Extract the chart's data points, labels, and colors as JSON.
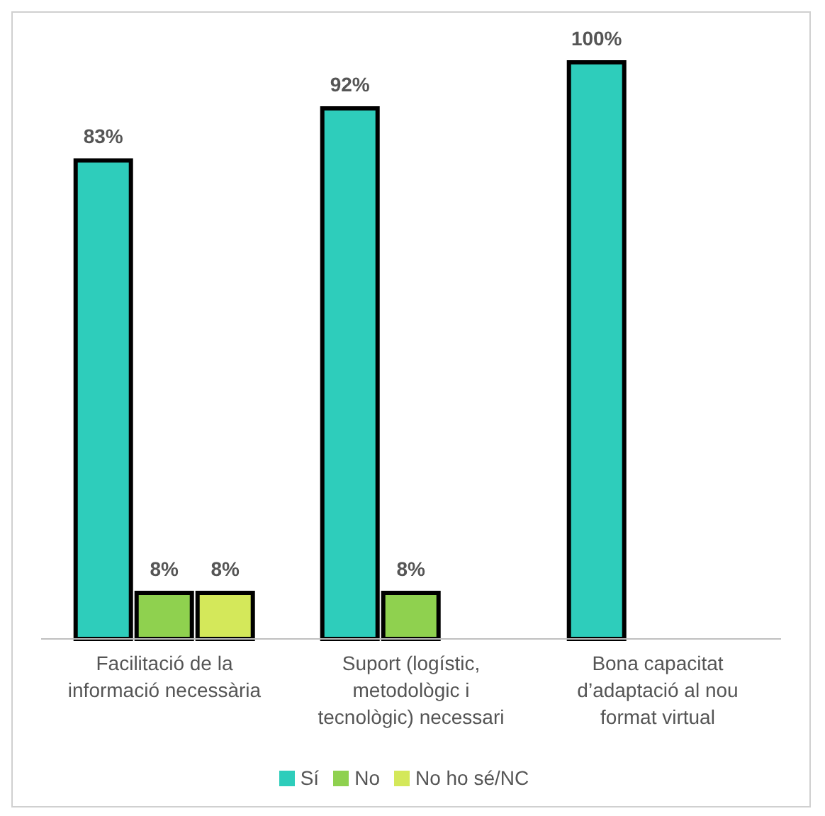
{
  "chart_data": {
    "type": "bar",
    "categories": [
      "Facilitació de la informació necessària",
      "Suport (logístic, metodològic i tecnològic) necessari",
      "Bona capacitat d’adaptació al nou format virtual"
    ],
    "series": [
      {
        "name": "Sí",
        "color": "#2ecdbb",
        "values": [
          83,
          92,
          100
        ],
        "value_labels": [
          "83%",
          "92%",
          "100%"
        ]
      },
      {
        "name": "No",
        "color": "#8fd14f",
        "values": [
          8,
          8,
          null
        ],
        "value_labels": [
          "8%",
          "8%",
          null
        ]
      },
      {
        "name": "No ho sé/NC",
        "color": "#d4e85a",
        "values": [
          8,
          null,
          null
        ],
        "value_labels": [
          "8%",
          null,
          null
        ]
      }
    ],
    "legend": "bottom",
    "grid": false
  }
}
